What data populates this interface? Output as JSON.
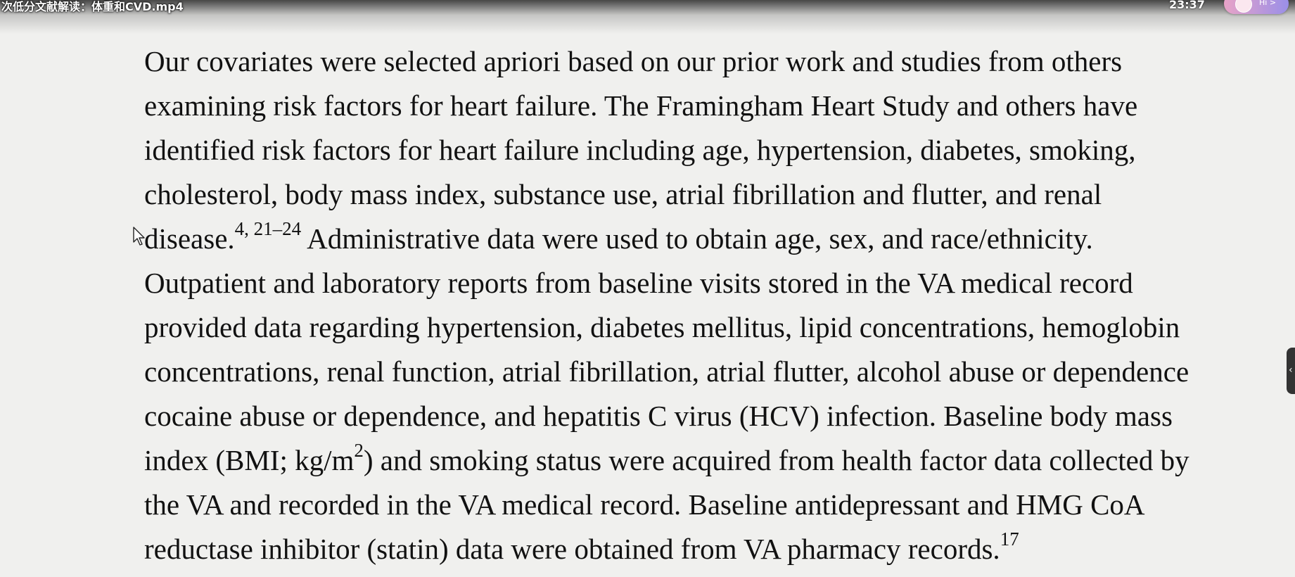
{
  "video": {
    "title": "次低分文献解读：体重和CVD.mp4",
    "clock": "23:37",
    "assistant_label": "Hi >"
  },
  "article": {
    "lines": [
      {
        "text": "Our covariates were selected apriori based on our prior work and studies from others"
      },
      {
        "text": "examining risk factors for heart failure. The Framingham Heart Study and others have"
      },
      {
        "text": "identified risk factors for heart failure including age, hypertension, diabetes, smoking,"
      },
      {
        "text": "cholesterol, body mass index, substance use, atrial fibrillation and flutter, and renal"
      },
      {
        "pre": "disease.",
        "sup": "4, 21–24",
        "post": " Administrative data were used to obtain age, sex, and race/ethnicity."
      },
      {
        "text": "Outpatient and laboratory reports from baseline visits stored in the VA medical record"
      },
      {
        "text": "provided data regarding hypertension, diabetes mellitus, lipid concentrations, hemoglobin"
      },
      {
        "text": "concentrations, renal function, atrial fibrillation, atrial flutter, alcohol abuse or dependence"
      },
      {
        "text": "cocaine abuse or dependence, and hepatitis C virus (HCV) infection. Baseline body mass"
      },
      {
        "pre": "index (BMI; kg/m",
        "sup": "2",
        "post": ") and smoking status were acquired from health factor data collected by"
      },
      {
        "text": "the VA and recorded in the VA medical record. Baseline antidepressant and HMG CoA"
      },
      {
        "pre": "reductase inhibitor (statin) data were obtained from VA pharmacy records.",
        "sup": "17",
        "post": ""
      }
    ]
  }
}
